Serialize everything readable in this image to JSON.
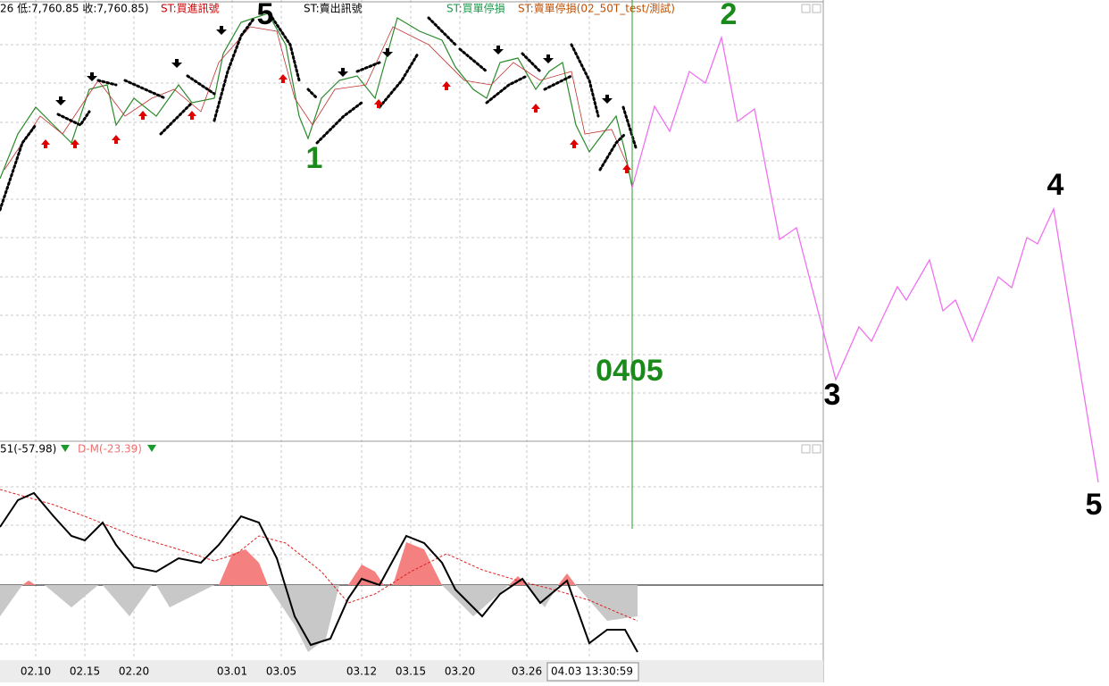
{
  "header": {
    "ohlc": "26 低:7,760.85 收:7,760.85)",
    "buy_signal": "ST:買進訊號",
    "sell_signal": "ST:賣出訊號",
    "buy_stop": "ST:買單停損",
    "sell_stop": "ST:賣單停損(02_50T_test/測試)"
  },
  "indicator": {
    "osc": "51(-57.98)",
    "dm": "D-M(-23.39)"
  },
  "x_axis": [
    "02.10",
    "02.15",
    "02.20",
    "03.01",
    "03.05",
    "03.12",
    "03.15",
    "03.20",
    "03.26",
    "04.03 13:30:59"
  ],
  "annotations": {
    "wave5_top": "5",
    "wave1": "1",
    "wave2": "2",
    "date_mark": "0405",
    "wave3": "3",
    "wave4": "4",
    "wave5_end": "5"
  }
}
